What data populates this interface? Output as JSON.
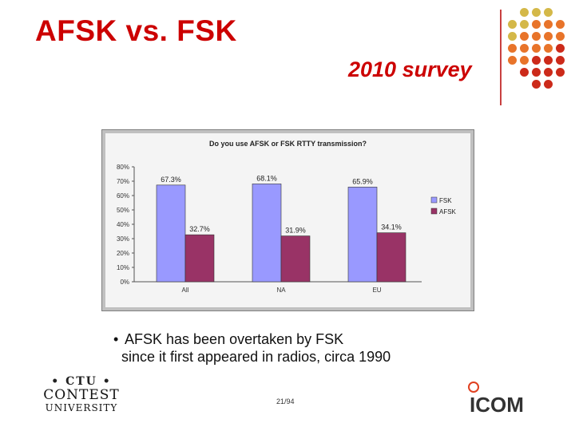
{
  "slide": {
    "title": "AFSK vs. FSK",
    "subtitle": "2010 survey",
    "bullet": {
      "line1": "AFSK has been overtaken by FSK",
      "line2": "since it first appeared in radios, circa 1990"
    },
    "page_number": "21/94",
    "colors": {
      "title": "#cc0000",
      "dots_orange": "#e8742a",
      "dots_gold": "#d4b848",
      "dots_red": "#cc2a1a"
    }
  },
  "logos": {
    "ctu_top": "• CTU •",
    "ctu_middle": "CONTEST",
    "ctu_bottom": "UNIVERSITY",
    "icom": "ICOM"
  },
  "chart_data": {
    "type": "bar",
    "title": "Do you use AFSK or FSK RTTY transmission?",
    "categories": [
      "All",
      "NA",
      "EU"
    ],
    "series": [
      {
        "name": "FSK",
        "values": [
          67.3,
          68.1,
          65.9
        ],
        "labels": [
          "67.3%",
          "68.1%",
          "65.9%"
        ],
        "color": "#9999ff"
      },
      {
        "name": "AFSK",
        "values": [
          32.7,
          31.9,
          34.1
        ],
        "labels": [
          "32.7%",
          "31.9%",
          "34.1%"
        ],
        "color": "#993366"
      }
    ],
    "y_ticks": [
      "0%",
      "10%",
      "20%",
      "30%",
      "40%",
      "50%",
      "60%",
      "70%",
      "80%"
    ],
    "ylim": [
      0,
      80
    ],
    "legend_position": "right",
    "grid": false
  }
}
